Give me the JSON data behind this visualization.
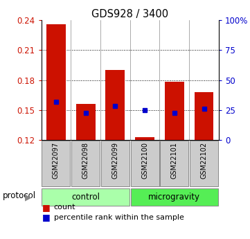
{
  "title": "GDS928 / 3400",
  "samples": [
    "GSM22097",
    "GSM22098",
    "GSM22099",
    "GSM22100",
    "GSM22101",
    "GSM22102"
  ],
  "bar_top": [
    0.236,
    0.156,
    0.19,
    0.123,
    0.178,
    0.168
  ],
  "bar_bottom": [
    0.12,
    0.12,
    0.12,
    0.12,
    0.12,
    0.12
  ],
  "blue_marker": [
    0.158,
    0.147,
    0.154,
    0.15,
    0.147,
    0.151
  ],
  "bar_color": "#cc1100",
  "blue_color": "#0000cc",
  "ylim": [
    0.12,
    0.24
  ],
  "yticks": [
    0.12,
    0.15,
    0.18,
    0.21,
    0.24
  ],
  "right_yticks": [
    0,
    25,
    50,
    75,
    100
  ],
  "right_yticklabels": [
    "0",
    "25",
    "50",
    "75",
    "100%"
  ],
  "control_color": "#aaffaa",
  "microgravity_color": "#55ee55",
  "sample_box_color": "#cccccc",
  "sample_box_edge": "#888888",
  "grid_color": "#000000",
  "background_color": "#ffffff",
  "bar_width": 0.65,
  "n_control": 3,
  "n_micro": 3
}
